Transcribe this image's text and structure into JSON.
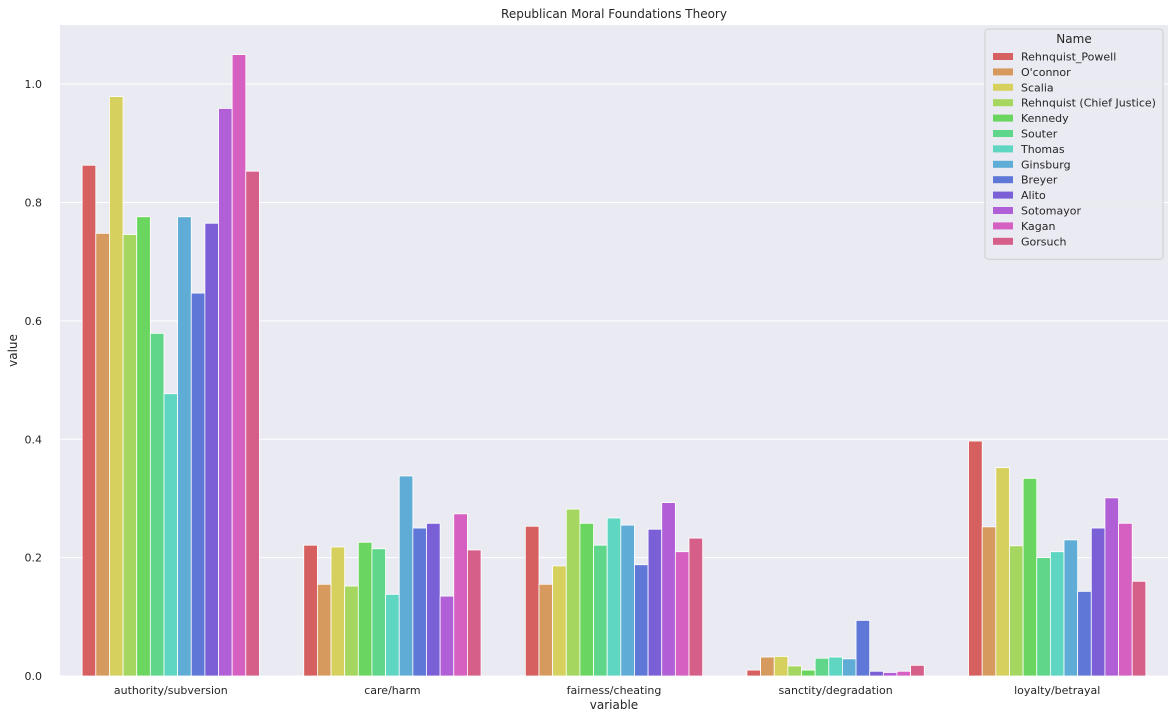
{
  "chart_data": {
    "type": "bar",
    "title": "Republican Moral Foundations Theory",
    "xlabel": "variable",
    "ylabel": "value",
    "ylim": [
      0,
      1.1
    ],
    "yticks": [
      0.0,
      0.2,
      0.4,
      0.6,
      0.8,
      1.0
    ],
    "ytick_labels": [
      "0.0",
      "0.2",
      "0.4",
      "0.6",
      "0.8",
      "1.0"
    ],
    "grid": true,
    "legend_title": "Name",
    "legend_position": "top-right",
    "categories": [
      "authority/subversion",
      "care/harm",
      "fairness/cheating",
      "sanctity/degradation",
      "loyalty/betrayal"
    ],
    "series": [
      {
        "name": "Rehnquist_Powell",
        "color": "#d65f5f",
        "values": [
          0.863,
          0.221,
          0.253,
          0.01,
          0.397
        ]
      },
      {
        "name": "O'connor",
        "color": "#d69a5f",
        "values": [
          0.748,
          0.155,
          0.155,
          0.032,
          0.252
        ]
      },
      {
        "name": "Scalia",
        "color": "#d6d05f",
        "values": [
          0.979,
          0.218,
          0.186,
          0.033,
          0.352
        ]
      },
      {
        "name": "Rehnquist (Chief Justice)",
        "color": "#a5d65f",
        "values": [
          0.746,
          0.152,
          0.282,
          0.017,
          0.22
        ]
      },
      {
        "name": "Kennedy",
        "color": "#6bd65f",
        "values": [
          0.776,
          0.226,
          0.258,
          0.01,
          0.334
        ]
      },
      {
        "name": "Souter",
        "color": "#5fd689",
        "values": [
          0.579,
          0.215,
          0.221,
          0.03,
          0.2
        ]
      },
      {
        "name": "Thomas",
        "color": "#5fd6c2",
        "values": [
          0.477,
          0.138,
          0.267,
          0.032,
          0.21
        ]
      },
      {
        "name": "Ginsburg",
        "color": "#5fadd6",
        "values": [
          0.776,
          0.338,
          0.255,
          0.029,
          0.23
        ]
      },
      {
        "name": "Breyer",
        "color": "#5f77d6",
        "values": [
          0.647,
          0.25,
          0.188,
          0.094,
          0.143
        ]
      },
      {
        "name": "Alito",
        "color": "#7b5fd6",
        "values": [
          0.765,
          0.258,
          0.248,
          0.008,
          0.25
        ]
      },
      {
        "name": "Sotomayor",
        "color": "#b15fd6",
        "values": [
          0.959,
          0.135,
          0.293,
          0.006,
          0.301
        ]
      },
      {
        "name": "Kagan",
        "color": "#d65fc2",
        "values": [
          1.05,
          0.274,
          0.21,
          0.008,
          0.258
        ]
      },
      {
        "name": "Gorsuch",
        "color": "#d65f89",
        "values": [
          0.853,
          0.213,
          0.233,
          0.018,
          0.16
        ]
      }
    ]
  }
}
